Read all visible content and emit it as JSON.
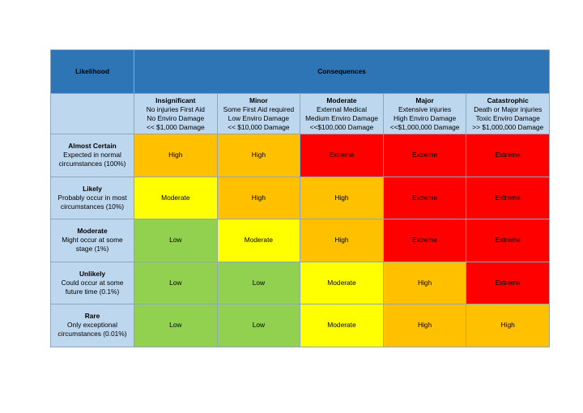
{
  "header": {
    "likelihood": "Likelihood",
    "consequences": "Consequences"
  },
  "consequences": [
    {
      "title": "Insignificant",
      "lines": [
        "No injuries First Aid",
        "No Enviro Damage",
        "<< $1,000 Damage"
      ]
    },
    {
      "title": "Minor",
      "lines": [
        "Some First Aid required",
        "Low Enviro Damage",
        "<< $10,000 Damage"
      ]
    },
    {
      "title": "Moderate",
      "lines": [
        "External Medical",
        "Medium Enviro Damage",
        "<<$100,000 Damage"
      ]
    },
    {
      "title": "Major",
      "lines": [
        "Extensive injuries",
        "High Enviro Damage",
        "<<$1,000,000 Damage"
      ]
    },
    {
      "title": "Catastrophic",
      "lines": [
        "Death or Major injuries",
        "Toxic Enviro Damage",
        ">> $1,000,000 Damage"
      ]
    }
  ],
  "rows": [
    {
      "title": "Almost Certain",
      "lines": [
        "Expected in normal",
        "circumstances (100%)"
      ],
      "ratings": [
        "High",
        "High",
        "Extreme",
        "Extreme",
        "Extreme"
      ]
    },
    {
      "title": "Likely",
      "lines": [
        "Probably occur in most",
        "circumstances (10%)"
      ],
      "ratings": [
        "Moderate",
        "High",
        "High",
        "Extreme",
        "Extreme"
      ]
    },
    {
      "title": "Moderate",
      "lines": [
        "Might occur at some",
        "stage (1%)"
      ],
      "ratings": [
        "Low",
        "Moderate",
        "High",
        "Extreme",
        "Extreme"
      ]
    },
    {
      "title": "Unlikely",
      "lines": [
        "Could occur at some",
        "future time (0.1%)"
      ],
      "ratings": [
        "Low",
        "Low",
        "Moderate",
        "High",
        "Extreme"
      ]
    },
    {
      "title": "Rare",
      "lines": [
        "Only exceptional",
        "circumstances (0.01%)"
      ],
      "ratings": [
        "Low",
        "Low",
        "Moderate",
        "High",
        "High"
      ]
    }
  ],
  "colors": {
    "header": "#2e75b6",
    "subheader": "#bdd7ee",
    "High": "#ffc000",
    "Extreme": "#ff0000",
    "Moderate": "#ffff00",
    "Low": "#92d050"
  }
}
